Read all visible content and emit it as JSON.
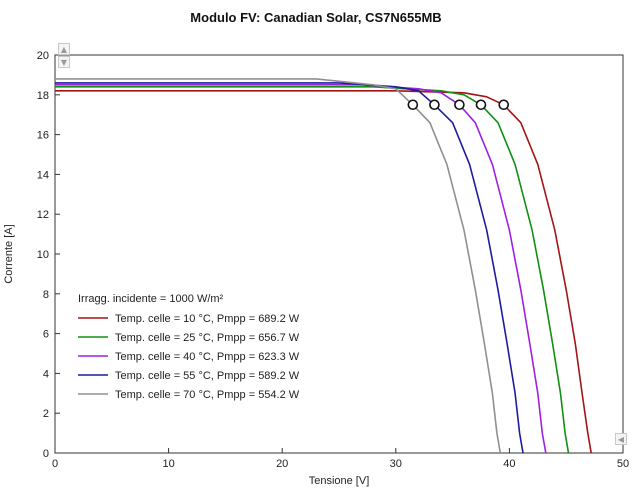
{
  "title": "Modulo FV: Canadian Solar, CS7N655MB",
  "chart_data": {
    "type": "line",
    "xlabel": "Tensione [V]",
    "ylabel": "Corrente [A]",
    "xlim": [
      0,
      50
    ],
    "ylim": [
      0,
      20
    ],
    "xticks": [
      "0",
      "10",
      "20",
      "30",
      "40",
      "50"
    ],
    "yticks": [
      "0",
      "2",
      "4",
      "6",
      "8",
      "10",
      "12",
      "14",
      "16",
      "18",
      "20"
    ],
    "grid": false,
    "legend_title": "Irragg. incidente = 1000 W/m²",
    "legend_position": "bottom-left",
    "series": [
      {
        "name": "Temp. celle = 10 °C, Pmpp = 689.2 W",
        "color": "#a31515",
        "x": [
          0,
          30,
          36,
          38,
          39.5,
          41,
          42.5,
          44,
          45,
          45.8,
          46.4,
          46.9,
          47.2
        ],
        "y": [
          18.2,
          18.2,
          18.1,
          17.9,
          17.5,
          16.6,
          14.5,
          11.2,
          8.2,
          5.5,
          3.0,
          1.0,
          0
        ],
        "mpp": [
          39.5,
          17.5
        ]
      },
      {
        "name": "Temp. celle = 25 °C, Pmpp = 656.7 W",
        "color": "#129012",
        "x": [
          0,
          28,
          34,
          36,
          37.5,
          39,
          40.5,
          42,
          43,
          43.8,
          44.5,
          44.9,
          45.2
        ],
        "y": [
          18.4,
          18.4,
          18.2,
          18.0,
          17.5,
          16.6,
          14.5,
          11.2,
          8.2,
          5.5,
          3.0,
          1.0,
          0
        ],
        "mpp": [
          37.5,
          17.5
        ]
      },
      {
        "name": "Temp. celle = 40 °C, Pmpp = 623.3 W",
        "color": "#a020e0",
        "x": [
          0,
          27,
          32,
          34,
          35.6,
          37,
          38.5,
          40,
          41,
          41.8,
          42.5,
          42.9,
          43.2
        ],
        "y": [
          18.5,
          18.5,
          18.3,
          18.1,
          17.5,
          16.6,
          14.5,
          11.2,
          8.2,
          5.5,
          3.0,
          1.0,
          0
        ],
        "mpp": [
          35.6,
          17.5
        ]
      },
      {
        "name": "Temp. celle = 55 °C, Pmpp = 589.2 W",
        "color": "#1c1ca0",
        "x": [
          0,
          25,
          30,
          32,
          33.4,
          35,
          36.5,
          38,
          39,
          39.8,
          40.5,
          40.9,
          41.2
        ],
        "y": [
          18.6,
          18.6,
          18.4,
          18.2,
          17.5,
          16.6,
          14.5,
          11.2,
          8.2,
          5.5,
          3.0,
          1.0,
          0
        ],
        "mpp": [
          33.4,
          17.5
        ]
      },
      {
        "name": "Temp. celle = 70 °C, Pmpp = 554.2 W",
        "color": "#909090",
        "x": [
          0,
          23,
          28,
          30,
          31.5,
          33,
          34.5,
          36,
          37,
          37.8,
          38.5,
          38.9,
          39.2
        ],
        "y": [
          18.8,
          18.8,
          18.5,
          18.3,
          17.5,
          16.6,
          14.5,
          11.2,
          8.2,
          5.5,
          3.0,
          1.0,
          0
        ],
        "mpp": [
          31.5,
          17.5
        ]
      }
    ]
  }
}
